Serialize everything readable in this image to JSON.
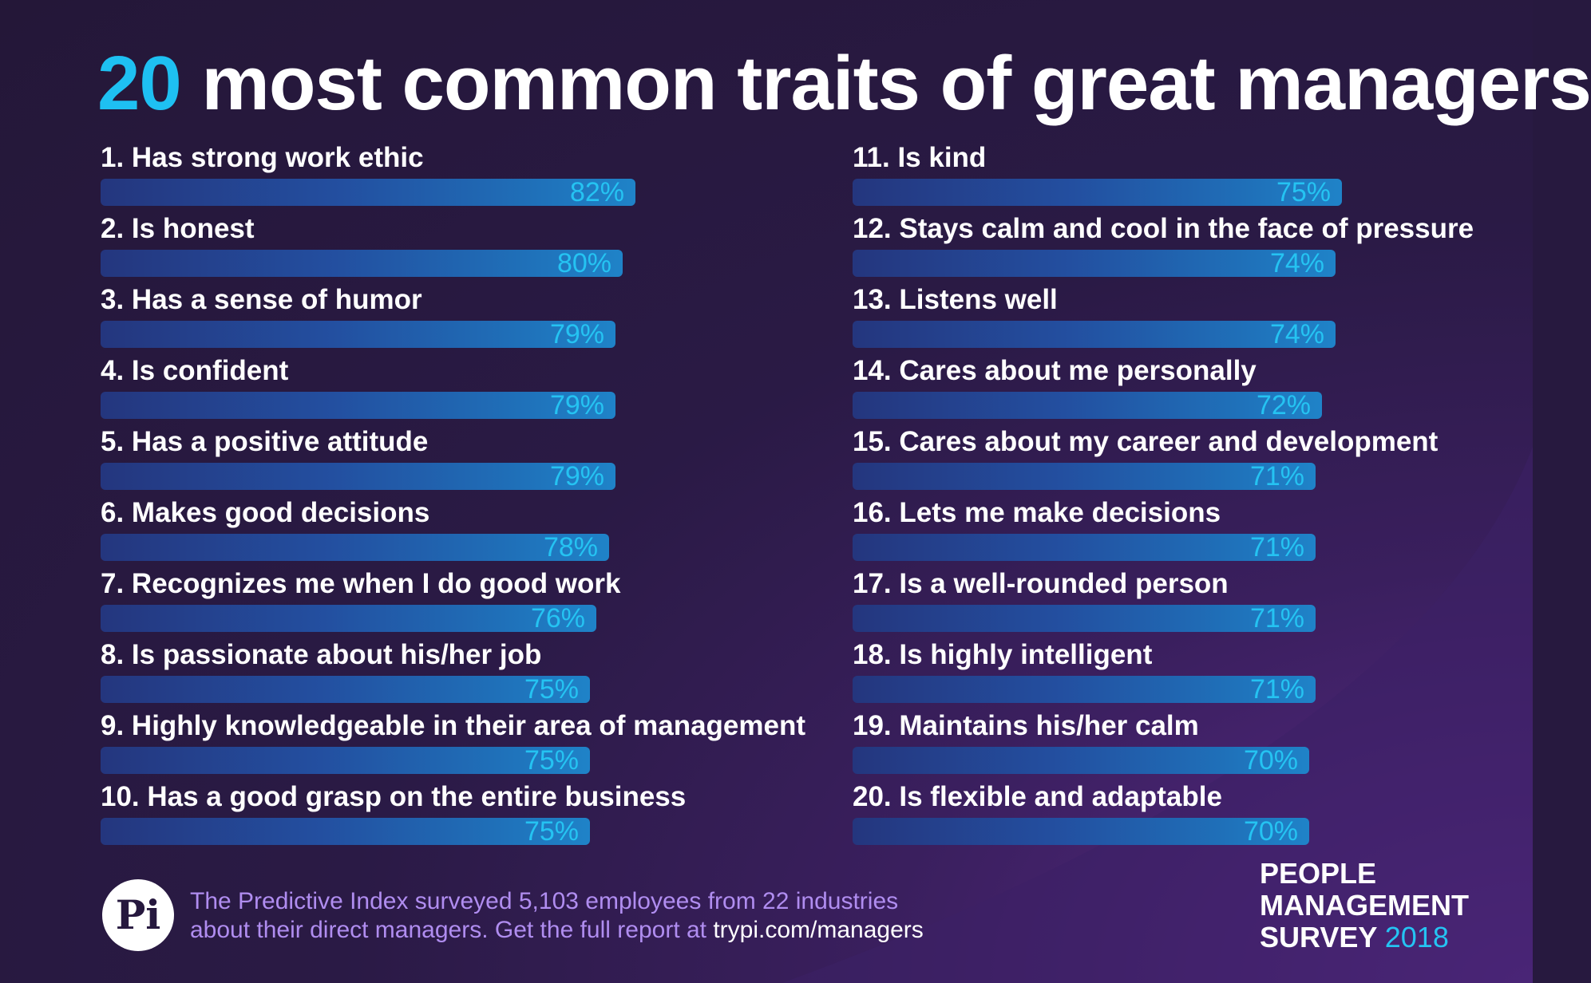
{
  "title": {
    "number": "20",
    "rest": " most common traits of great managers"
  },
  "chart_data": {
    "type": "bar",
    "orientation": "horizontal",
    "title": "20 most common traits of great managers",
    "categories": [
      "1. Has strong work ethic",
      "2. Is honest",
      "3. Has a sense of humor",
      "4. Is confident",
      "5. Has a positive attitude",
      "6. Makes good decisions",
      "7. Recognizes me when I do good work",
      "8. Is passionate about his/her job",
      "9. Highly knowledgeable in their area of management",
      "10. Has a good grasp on the entire business",
      "11. Is kind",
      "12. Stays calm and cool in the face of pressure",
      "13. Listens well",
      "14. Cares about me personally",
      "15. Cares about my career and development",
      "16. Lets me make decisions",
      "17. Is a well-rounded person",
      "18. Is highly intelligent",
      "19. Maintains his/her calm",
      "20. Is flexible and adaptable"
    ],
    "values": [
      82,
      80,
      79,
      79,
      79,
      78,
      76,
      75,
      75,
      75,
      75,
      74,
      74,
      72,
      71,
      71,
      71,
      71,
      70,
      70
    ],
    "value_labels": [
      "82%",
      "80%",
      "79%",
      "79%",
      "79%",
      "78%",
      "76%",
      "75%",
      "75%",
      "75%",
      "75%",
      "74%",
      "74%",
      "72%",
      "71%",
      "71%",
      "71%",
      "71%",
      "70%",
      "70%"
    ],
    "unit": "%",
    "grid": false,
    "legend": "none",
    "colors": {
      "bar_start": "#24367e",
      "bar_end": "#1f83c8",
      "value_label": "#25c3f2"
    }
  },
  "footer": {
    "logo_text": "Pi",
    "line1": "The Predictive Index surveyed 5,103 employees from 22 industries",
    "line2": "about their direct managers. Get the full report at ",
    "url": "trypi.com/managers"
  },
  "badge": {
    "line1": "PEOPLE",
    "line2": "MANAGEMENT",
    "line3": "SURVEY",
    "year": "2018"
  },
  "colors": {
    "background": "#27193f",
    "accent": "#1ec0f2",
    "footer_text": "#b08df0"
  }
}
